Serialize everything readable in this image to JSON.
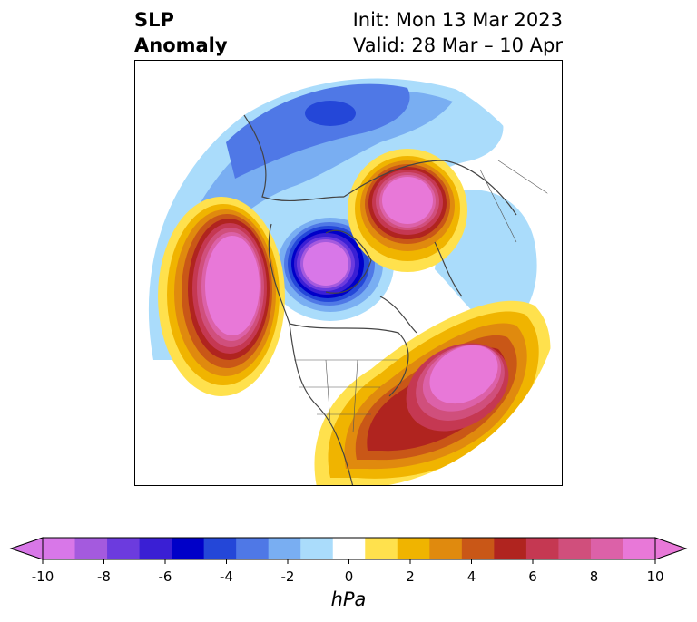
{
  "title": {
    "left_line1": "SLP",
    "left_line2": "Anomaly",
    "right_line1": "Init: Mon 13 Mar 2023",
    "right_line2": "Valid: 28 Mar – 10 Apr"
  },
  "map": {
    "projection": "north-polar-stereographic",
    "features": [
      {
        "name": "negative anomaly centre over Arctic Canada / Baffin Bay",
        "value_hpa": -10
      },
      {
        "name": "negative anomaly centre over northern Scandinavia",
        "value_hpa": -6
      },
      {
        "name": "positive anomaly centre over Gulf of Alaska / NE Pacific",
        "value_hpa": 10
      },
      {
        "name": "positive anomaly centre over western Russia",
        "value_hpa": 10
      },
      {
        "name": "positive anomaly centre over eastern US / western Atlantic",
        "value_hpa": 10
      }
    ]
  },
  "colorbar": {
    "unit": "hPa",
    "tick_labels": [
      "-10",
      "-8",
      "-6",
      "-4",
      "-2",
      "0",
      "2",
      "4",
      "6",
      "8",
      "10"
    ],
    "levels": [
      -10,
      -9,
      -8,
      -7,
      -6,
      -5,
      -4,
      -3,
      -2,
      -1,
      1,
      2,
      3,
      4,
      5,
      6,
      7,
      8,
      9,
      10
    ],
    "colors": [
      "#d877e8",
      "#a45ade",
      "#6c3bde",
      "#3a1fd4",
      "#0000c8",
      "#2447d8",
      "#4f78e6",
      "#79aef2",
      "#aadcfb",
      "#ffffff",
      "#ffe14d",
      "#f0b400",
      "#e08a0e",
      "#c95717",
      "#b0241f",
      "#c53852",
      "#d04f7c",
      "#dc61a8",
      "#e878d8"
    ],
    "extend_low_color": "#d877e8",
    "extend_high_color": "#e878d8"
  }
}
